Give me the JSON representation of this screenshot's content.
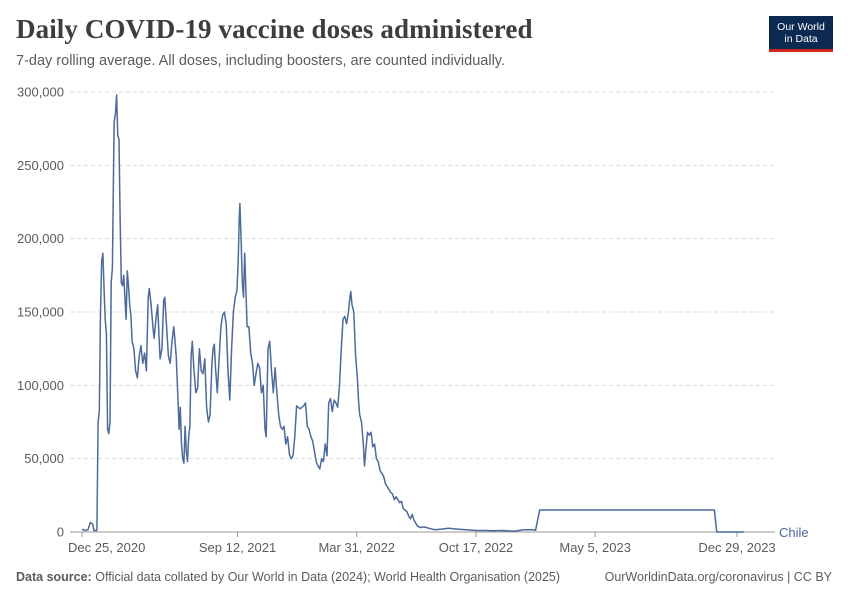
{
  "header": {
    "title": "Daily COVID-19 vaccine doses administered",
    "subtitle": "7-day rolling average. All doses, including boosters, are counted individually."
  },
  "logo": {
    "line1": "Our World",
    "line2": "in Data"
  },
  "footer": {
    "source_label": "Data source:",
    "source_text": "Official data collated by Our World in Data (2024); World Health Organisation (2025)",
    "link": "OurWorldinData.org/coronavirus | CC BY"
  },
  "colors": {
    "series": "#4c6a9c",
    "grid": "#dddddd",
    "logo_bg": "#0b2a52",
    "logo_accent": "#ce261e"
  },
  "chart_data": {
    "type": "line",
    "title": "Daily COVID-19 vaccine doses administered",
    "subtitle": "7-day rolling average. All doses, including boosters, are counted individually.",
    "xlabel": "",
    "ylabel": "",
    "ylim": [
      0,
      300000
    ],
    "xlim": [
      "2020-12-25",
      "2024-01-10"
    ],
    "y_ticks": [
      0,
      50000,
      100000,
      150000,
      200000,
      250000,
      300000
    ],
    "y_tick_labels": [
      "0",
      "50,000",
      "100,000",
      "150,000",
      "200,000",
      "250,000",
      "300,000"
    ],
    "x_ticks": [
      "2020-12-25",
      "2021-09-12",
      "2022-03-31",
      "2022-10-17",
      "2023-05-05",
      "2023-12-29"
    ],
    "x_tick_labels": [
      "Dec 25, 2020",
      "Sep 12, 2021",
      "Mar 31, 2022",
      "Oct 17, 2022",
      "May 5, 2023",
      "Dec 29, 2023"
    ],
    "grid": "horizontal dashed",
    "legend": "end-of-line label",
    "series": [
      {
        "name": "Chile",
        "color": "#4c6a9c",
        "points": [
          [
            "2020-12-25",
            2000
          ],
          [
            "2020-12-29",
            1000
          ],
          [
            "2021-01-04",
            1500
          ],
          [
            "2021-01-08",
            6500
          ],
          [
            "2021-01-12",
            5500
          ],
          [
            "2021-01-14",
            1000
          ],
          [
            "2021-01-19",
            1000
          ],
          [
            "2021-01-21",
            75000
          ],
          [
            "2021-01-23",
            82000
          ],
          [
            "2021-01-25",
            150000
          ],
          [
            "2021-01-27",
            185000
          ],
          [
            "2021-01-29",
            190000
          ],
          [
            "2021-01-31",
            165000
          ],
          [
            "2021-02-02",
            145000
          ],
          [
            "2021-02-04",
            135000
          ],
          [
            "2021-02-06",
            70000
          ],
          [
            "2021-02-08",
            67000
          ],
          [
            "2021-02-10",
            75000
          ],
          [
            "2021-02-12",
            170000
          ],
          [
            "2021-02-14",
            180000
          ],
          [
            "2021-02-16",
            250000
          ],
          [
            "2021-02-17",
            280000
          ],
          [
            "2021-02-19",
            285000
          ],
          [
            "2021-02-21",
            298000
          ],
          [
            "2021-02-23",
            270000
          ],
          [
            "2021-02-25",
            268000
          ],
          [
            "2021-02-27",
            215000
          ],
          [
            "2021-03-01",
            170000
          ],
          [
            "2021-03-03",
            168000
          ],
          [
            "2021-03-05",
            175000
          ],
          [
            "2021-03-07",
            160000
          ],
          [
            "2021-03-09",
            145000
          ],
          [
            "2021-03-11",
            178000
          ],
          [
            "2021-03-13",
            168000
          ],
          [
            "2021-03-15",
            155000
          ],
          [
            "2021-03-17",
            148000
          ],
          [
            "2021-03-19",
            130000
          ],
          [
            "2021-03-22",
            125000
          ],
          [
            "2021-03-25",
            110000
          ],
          [
            "2021-03-28",
            105000
          ],
          [
            "2021-03-31",
            120000
          ],
          [
            "2021-04-03",
            127000
          ],
          [
            "2021-04-06",
            115000
          ],
          [
            "2021-04-09",
            122000
          ],
          [
            "2021-04-12",
            110000
          ],
          [
            "2021-04-15",
            160000
          ],
          [
            "2021-04-17",
            166000
          ],
          [
            "2021-04-20",
            155000
          ],
          [
            "2021-04-23",
            140000
          ],
          [
            "2021-04-25",
            132000
          ],
          [
            "2021-04-28",
            145000
          ],
          [
            "2021-05-01",
            155000
          ],
          [
            "2021-05-03",
            135000
          ],
          [
            "2021-05-05",
            118000
          ],
          [
            "2021-05-08",
            125000
          ],
          [
            "2021-05-11",
            158000
          ],
          [
            "2021-05-13",
            160000
          ],
          [
            "2021-05-16",
            140000
          ],
          [
            "2021-05-19",
            120000
          ],
          [
            "2021-05-22",
            115000
          ],
          [
            "2021-05-25",
            130000
          ],
          [
            "2021-05-28",
            140000
          ],
          [
            "2021-06-01",
            120000
          ],
          [
            "2021-06-04",
            90000
          ],
          [
            "2021-06-06",
            70000
          ],
          [
            "2021-06-08",
            85000
          ],
          [
            "2021-06-10",
            60000
          ],
          [
            "2021-06-12",
            50000
          ],
          [
            "2021-06-14",
            47000
          ],
          [
            "2021-06-16",
            72000
          ],
          [
            "2021-06-18",
            55000
          ],
          [
            "2021-06-20",
            48000
          ],
          [
            "2021-06-22",
            65000
          ],
          [
            "2021-06-24",
            72000
          ],
          [
            "2021-06-26",
            120000
          ],
          [
            "2021-06-28",
            130000
          ],
          [
            "2021-07-01",
            110000
          ],
          [
            "2021-07-04",
            95000
          ],
          [
            "2021-07-07",
            98000
          ],
          [
            "2021-07-10",
            125000
          ],
          [
            "2021-07-13",
            110000
          ],
          [
            "2021-07-16",
            108000
          ],
          [
            "2021-07-19",
            118000
          ],
          [
            "2021-07-22",
            85000
          ],
          [
            "2021-07-25",
            75000
          ],
          [
            "2021-07-28",
            80000
          ],
          [
            "2021-07-31",
            115000
          ],
          [
            "2021-08-02",
            125000
          ],
          [
            "2021-08-04",
            128000
          ],
          [
            "2021-08-06",
            112000
          ],
          [
            "2021-08-09",
            95000
          ],
          [
            "2021-08-12",
            118000
          ],
          [
            "2021-08-15",
            140000
          ],
          [
            "2021-08-18",
            148000
          ],
          [
            "2021-08-21",
            150000
          ],
          [
            "2021-08-24",
            142000
          ],
          [
            "2021-08-27",
            110000
          ],
          [
            "2021-08-30",
            90000
          ],
          [
            "2021-09-02",
            125000
          ],
          [
            "2021-09-05",
            150000
          ],
          [
            "2021-09-08",
            160000
          ],
          [
            "2021-09-11",
            165000
          ],
          [
            "2021-09-13",
            185000
          ],
          [
            "2021-09-15",
            215000
          ],
          [
            "2021-09-16",
            224000
          ],
          [
            "2021-09-18",
            200000
          ],
          [
            "2021-09-20",
            170000
          ],
          [
            "2021-09-22",
            160000
          ],
          [
            "2021-09-24",
            190000
          ],
          [
            "2021-09-26",
            165000
          ],
          [
            "2021-09-28",
            140000
          ],
          [
            "2021-10-01",
            140000
          ],
          [
            "2021-10-04",
            122000
          ],
          [
            "2021-10-07",
            115000
          ],
          [
            "2021-10-10",
            100000
          ],
          [
            "2021-10-13",
            108000
          ],
          [
            "2021-10-16",
            115000
          ],
          [
            "2021-10-19",
            112000
          ],
          [
            "2021-10-22",
            95000
          ],
          [
            "2021-10-25",
            100000
          ],
          [
            "2021-10-28",
            70000
          ],
          [
            "2021-10-30",
            65000
          ],
          [
            "2021-11-02",
            125000
          ],
          [
            "2021-11-05",
            130000
          ],
          [
            "2021-11-08",
            110000
          ],
          [
            "2021-11-11",
            95000
          ],
          [
            "2021-11-14",
            112000
          ],
          [
            "2021-11-17",
            95000
          ],
          [
            "2021-11-20",
            80000
          ],
          [
            "2021-11-23",
            72000
          ],
          [
            "2021-11-26",
            70000
          ],
          [
            "2021-11-29",
            72000
          ],
          [
            "2021-12-02",
            60000
          ],
          [
            "2021-12-05",
            65000
          ],
          [
            "2021-12-08",
            53000
          ],
          [
            "2021-12-11",
            50000
          ],
          [
            "2021-12-14",
            52000
          ],
          [
            "2021-12-17",
            65000
          ],
          [
            "2021-12-20",
            86000
          ],
          [
            "2021-12-23",
            85000
          ],
          [
            "2021-12-26",
            84000
          ],
          [
            "2021-12-29",
            85000
          ],
          [
            "2022-01-01",
            86000
          ],
          [
            "2022-01-04",
            88000
          ],
          [
            "2022-01-07",
            72000
          ],
          [
            "2022-01-10",
            70000
          ],
          [
            "2022-01-13",
            65000
          ],
          [
            "2022-01-16",
            62000
          ],
          [
            "2022-01-19",
            55000
          ],
          [
            "2022-01-22",
            48000
          ],
          [
            "2022-01-25",
            45000
          ],
          [
            "2022-01-28",
            43000
          ],
          [
            "2022-01-31",
            50000
          ],
          [
            "2022-02-03",
            48000
          ],
          [
            "2022-02-06",
            60000
          ],
          [
            "2022-02-09",
            52000
          ],
          [
            "2022-02-12",
            88000
          ],
          [
            "2022-02-15",
            91000
          ],
          [
            "2022-02-18",
            82000
          ],
          [
            "2022-02-21",
            90000
          ],
          [
            "2022-02-24",
            88000
          ],
          [
            "2022-02-27",
            85000
          ],
          [
            "2022-03-02",
            100000
          ],
          [
            "2022-03-05",
            125000
          ],
          [
            "2022-03-08",
            145000
          ],
          [
            "2022-03-11",
            147000
          ],
          [
            "2022-03-14",
            142000
          ],
          [
            "2022-03-17",
            150000
          ],
          [
            "2022-03-19",
            158000
          ],
          [
            "2022-03-21",
            164000
          ],
          [
            "2022-03-23",
            155000
          ],
          [
            "2022-03-26",
            150000
          ],
          [
            "2022-03-29",
            120000
          ],
          [
            "2022-04-01",
            105000
          ],
          [
            "2022-04-03",
            90000
          ],
          [
            "2022-04-05",
            80000
          ],
          [
            "2022-04-08",
            75000
          ],
          [
            "2022-04-11",
            60000
          ],
          [
            "2022-04-13",
            45000
          ],
          [
            "2022-04-15",
            55000
          ],
          [
            "2022-04-18",
            68000
          ],
          [
            "2022-04-21",
            66000
          ],
          [
            "2022-04-24",
            68000
          ],
          [
            "2022-04-27",
            58000
          ],
          [
            "2022-04-30",
            60000
          ],
          [
            "2022-05-03",
            50000
          ],
          [
            "2022-05-06",
            48000
          ],
          [
            "2022-05-09",
            42000
          ],
          [
            "2022-05-12",
            40000
          ],
          [
            "2022-05-15",
            38000
          ],
          [
            "2022-05-18",
            33000
          ],
          [
            "2022-05-21",
            31000
          ],
          [
            "2022-05-24",
            29000
          ],
          [
            "2022-05-27",
            27000
          ],
          [
            "2022-05-30",
            26000
          ],
          [
            "2022-06-02",
            22000
          ],
          [
            "2022-06-05",
            24000
          ],
          [
            "2022-06-08",
            22000
          ],
          [
            "2022-06-11",
            20000
          ],
          [
            "2022-06-14",
            21000
          ],
          [
            "2022-06-17",
            16000
          ],
          [
            "2022-06-20",
            15000
          ],
          [
            "2022-06-23",
            14000
          ],
          [
            "2022-06-26",
            11000
          ],
          [
            "2022-06-29",
            9000
          ],
          [
            "2022-07-02",
            12000
          ],
          [
            "2022-07-05",
            8000
          ],
          [
            "2022-07-08",
            6000
          ],
          [
            "2022-07-11",
            4000
          ],
          [
            "2022-07-16",
            3000
          ],
          [
            "2022-07-22",
            3500
          ],
          [
            "2022-07-30",
            2500
          ],
          [
            "2022-08-10",
            1500
          ],
          [
            "2022-08-20",
            2000
          ],
          [
            "2022-09-01",
            2500
          ],
          [
            "2022-09-15",
            2000
          ],
          [
            "2022-10-01",
            1500
          ],
          [
            "2022-10-17",
            1000
          ],
          [
            "2022-11-01",
            1000
          ],
          [
            "2022-11-15",
            800
          ],
          [
            "2022-12-01",
            1000
          ],
          [
            "2022-12-20",
            500
          ],
          [
            "2023-01-05",
            1500
          ],
          [
            "2023-01-20",
            1500
          ],
          [
            "2023-01-25",
            1200
          ],
          [
            "2023-02-01",
            15000
          ],
          [
            "2023-11-21",
            15000
          ],
          [
            "2023-11-25",
            0
          ],
          [
            "2024-01-10",
            0
          ]
        ]
      }
    ]
  }
}
